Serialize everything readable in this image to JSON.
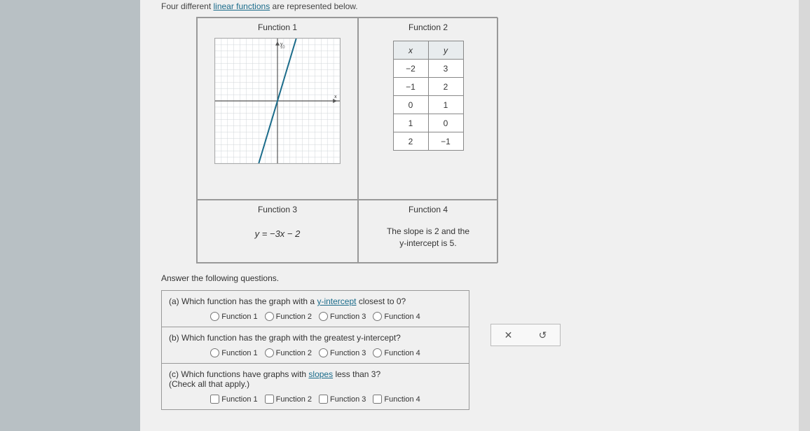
{
  "intro_prefix": "Four different ",
  "intro_link": "linear functions",
  "intro_suffix": " are represented below.",
  "functions": {
    "f1": {
      "title": "Function 1"
    },
    "f2": {
      "title": "Function 2",
      "table": {
        "headers": [
          "x",
          "y"
        ],
        "rows": [
          [
            "−2",
            "3"
          ],
          [
            "−1",
            "2"
          ],
          [
            "0",
            "1"
          ],
          [
            "1",
            "0"
          ],
          [
            "2",
            "−1"
          ]
        ]
      }
    },
    "f3": {
      "title": "Function 3",
      "equation": "y = −3x − 2"
    },
    "f4": {
      "title": "Function 4",
      "text1": "The slope is 2 and the",
      "text2": "y-intercept is 5."
    }
  },
  "graph": {
    "xmin": -10,
    "xmax": 10,
    "ymin": -10,
    "ymax": 10,
    "grid_color": "#cfd6d9",
    "axis_color": "#555",
    "line_color": "#1a6b8a",
    "line_p1": [
      -3,
      -10
    ],
    "line_p2": [
      3,
      10
    ]
  },
  "answer_intro": "Answer the following questions.",
  "questions": {
    "a": {
      "text_prefix": "(a) Which function has the graph with a ",
      "text_link": "y-intercept",
      "text_suffix": " closest to 0?",
      "options": [
        "Function 1",
        "Function 2",
        "Function 3",
        "Function 4"
      ],
      "type": "radio"
    },
    "b": {
      "text": "(b) Which function has the graph with the greatest y-intercept?",
      "options": [
        "Function 1",
        "Function 2",
        "Function 3",
        "Function 4"
      ],
      "type": "radio"
    },
    "c": {
      "text_prefix": "(c) Which functions have graphs with ",
      "text_link": "slopes",
      "text_suffix": " less than 3?",
      "sub": "(Check all that apply.)",
      "options": [
        "Function 1",
        "Function 2",
        "Function 3",
        "Function 4"
      ],
      "type": "checkbox"
    }
  },
  "side": {
    "close": "✕",
    "reset": "↺"
  }
}
